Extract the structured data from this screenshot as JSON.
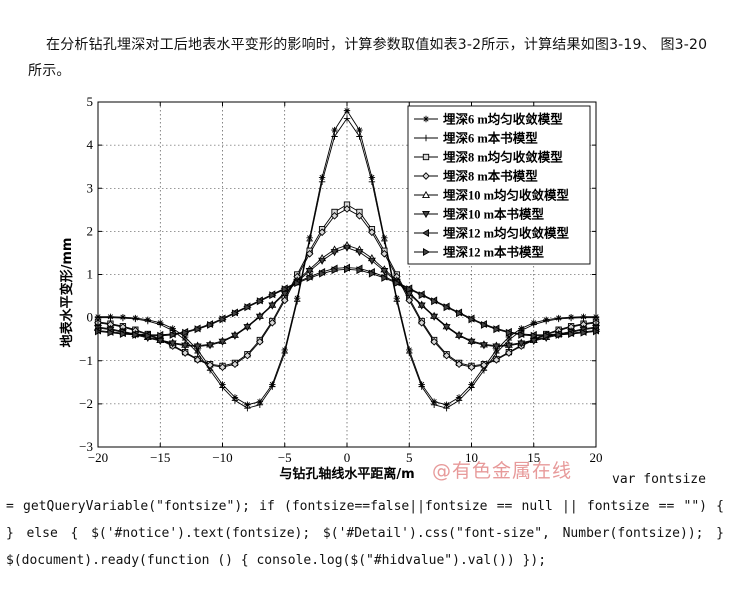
{
  "document": {
    "intro_text": "在分析钻孔埋深对工后地表水平变形的影响时，计算参数取值如表3-2所示，计算结果如图3-19、 图3-20所示。",
    "watermark": "@有色金属在线",
    "code_first": "var fontsize",
    "code_rest": "= getQueryVariable(\"fontsize\"); if (fontsize==false||fontsize == null || fontsize == \"\") { } else { $('#notice').text(fontsize); $('#Detail').css(\"font-size\", Number(fontsize)); } $(document).ready(function () { console.log($(\"#hidvalue\").val()) });"
  },
  "chart_data": {
    "type": "line",
    "xlabel": "与钻孔轴线水平距离/m",
    "ylabel": "地表水平变形/mm",
    "xlim": [
      -20,
      20
    ],
    "ylim": [
      -3,
      5
    ],
    "xticks": [
      -20,
      -15,
      -10,
      -5,
      0,
      5,
      10,
      15,
      20
    ],
    "yticks": [
      -3,
      -2,
      -1,
      0,
      1,
      2,
      3,
      4,
      5
    ],
    "grid": true,
    "legend_position": "top-right",
    "x": [
      -20,
      -19,
      -18,
      -17,
      -16,
      -15,
      -14,
      -13,
      -12,
      -11,
      -10,
      -9,
      -8,
      -7,
      -6,
      -5,
      -4,
      -3,
      -2,
      -1,
      0,
      1,
      2,
      3,
      4,
      5,
      6,
      7,
      8,
      9,
      10,
      11,
      12,
      13,
      14,
      15,
      16,
      17,
      18,
      19,
      20
    ],
    "series": [
      {
        "name": "埋深6 m均匀收敛模型",
        "marker": "star",
        "values": [
          0.02,
          0.02,
          0.01,
          -0.01,
          -0.05,
          -0.12,
          -0.25,
          -0.45,
          -0.75,
          -1.15,
          -1.55,
          -1.85,
          -2.02,
          -1.95,
          -1.55,
          -0.75,
          0.45,
          1.85,
          3.25,
          4.35,
          4.8,
          4.35,
          3.25,
          1.85,
          0.45,
          -0.75,
          -1.55,
          -1.95,
          -2.02,
          -1.85,
          -1.55,
          -1.15,
          -0.75,
          -0.45,
          -0.25,
          -0.12,
          -0.05,
          -0.01,
          0.01,
          0.02,
          0.02
        ]
      },
      {
        "name": "埋深6 m本书模型",
        "marker": "plus",
        "values": [
          0.0,
          0.0,
          -0.01,
          -0.03,
          -0.08,
          -0.16,
          -0.3,
          -0.52,
          -0.82,
          -1.22,
          -1.62,
          -1.92,
          -2.1,
          -2.02,
          -1.6,
          -0.82,
          0.38,
          1.78,
          3.15,
          4.2,
          4.62,
          4.2,
          3.15,
          1.78,
          0.38,
          -0.82,
          -1.6,
          -2.02,
          -2.1,
          -1.92,
          -1.62,
          -1.22,
          -0.82,
          -0.52,
          -0.3,
          -0.16,
          -0.08,
          -0.03,
          -0.01,
          0.0,
          0.0
        ]
      },
      {
        "name": "埋深8 m均匀收敛模型",
        "marker": "square",
        "values": [
          -0.1,
          -0.14,
          -0.2,
          -0.28,
          -0.38,
          -0.5,
          -0.64,
          -0.8,
          -0.96,
          -1.08,
          -1.12,
          -1.05,
          -0.85,
          -0.52,
          -0.08,
          0.45,
          1.0,
          1.55,
          2.05,
          2.45,
          2.62,
          2.45,
          2.05,
          1.55,
          1.0,
          0.45,
          -0.08,
          -0.52,
          -0.85,
          -1.05,
          -1.12,
          -1.08,
          -0.96,
          -0.8,
          -0.64,
          -0.5,
          -0.38,
          -0.28,
          -0.2,
          -0.14,
          -0.1
        ]
      },
      {
        "name": "埋深8 m本书模型",
        "marker": "diamond",
        "values": [
          -0.12,
          -0.16,
          -0.22,
          -0.3,
          -0.4,
          -0.52,
          -0.66,
          -0.82,
          -0.98,
          -1.1,
          -1.15,
          -1.08,
          -0.88,
          -0.56,
          -0.12,
          0.4,
          0.95,
          1.48,
          1.98,
          2.36,
          2.52,
          2.36,
          1.98,
          1.48,
          0.95,
          0.4,
          -0.12,
          -0.56,
          -0.88,
          -1.08,
          -1.15,
          -1.1,
          -0.98,
          -0.82,
          -0.66,
          -0.52,
          -0.4,
          -0.3,
          -0.22,
          -0.16,
          -0.12
        ]
      },
      {
        "name": "埋深10 m均匀收敛模型",
        "marker": "triangle-up",
        "values": [
          -0.22,
          -0.26,
          -0.32,
          -0.38,
          -0.45,
          -0.52,
          -0.58,
          -0.63,
          -0.65,
          -0.62,
          -0.54,
          -0.4,
          -0.2,
          0.04,
          0.3,
          0.58,
          0.86,
          1.12,
          1.38,
          1.58,
          1.68,
          1.58,
          1.38,
          1.12,
          0.86,
          0.58,
          0.3,
          0.04,
          -0.2,
          -0.4,
          -0.54,
          -0.62,
          -0.65,
          -0.63,
          -0.58,
          -0.52,
          -0.45,
          -0.38,
          -0.32,
          -0.26,
          -0.22
        ]
      },
      {
        "name": "埋深10 m本书模型",
        "marker": "triangle-down",
        "values": [
          -0.24,
          -0.28,
          -0.34,
          -0.4,
          -0.47,
          -0.54,
          -0.6,
          -0.65,
          -0.67,
          -0.64,
          -0.56,
          -0.42,
          -0.22,
          0.02,
          0.28,
          0.55,
          0.83,
          1.08,
          1.32,
          1.52,
          1.62,
          1.52,
          1.32,
          1.08,
          0.83,
          0.55,
          0.28,
          0.02,
          -0.22,
          -0.42,
          -0.56,
          -0.64,
          -0.67,
          -0.65,
          -0.6,
          -0.54,
          -0.47,
          -0.4,
          -0.34,
          -0.28,
          -0.24
        ]
      },
      {
        "name": "埋深12 m均匀收敛模型",
        "marker": "triangle-left",
        "values": [
          -0.3,
          -0.33,
          -0.36,
          -0.38,
          -0.4,
          -0.4,
          -0.38,
          -0.33,
          -0.25,
          -0.15,
          -0.02,
          0.12,
          0.26,
          0.4,
          0.54,
          0.68,
          0.82,
          0.95,
          1.06,
          1.14,
          1.16,
          1.14,
          1.06,
          0.95,
          0.82,
          0.68,
          0.54,
          0.4,
          0.26,
          0.12,
          -0.02,
          -0.15,
          -0.25,
          -0.33,
          -0.38,
          -0.4,
          -0.4,
          -0.38,
          -0.36,
          -0.33,
          -0.3
        ]
      },
      {
        "name": "埋深12 m本书模型",
        "marker": "triangle-right",
        "values": [
          -0.32,
          -0.35,
          -0.38,
          -0.4,
          -0.42,
          -0.42,
          -0.4,
          -0.35,
          -0.27,
          -0.17,
          -0.04,
          0.1,
          0.24,
          0.38,
          0.52,
          0.66,
          0.8,
          0.92,
          1.02,
          1.1,
          1.12,
          1.1,
          1.02,
          0.92,
          0.8,
          0.66,
          0.52,
          0.38,
          0.24,
          0.1,
          -0.04,
          -0.17,
          -0.27,
          -0.35,
          -0.4,
          -0.42,
          -0.42,
          -0.4,
          -0.38,
          -0.35,
          -0.32
        ]
      }
    ]
  }
}
